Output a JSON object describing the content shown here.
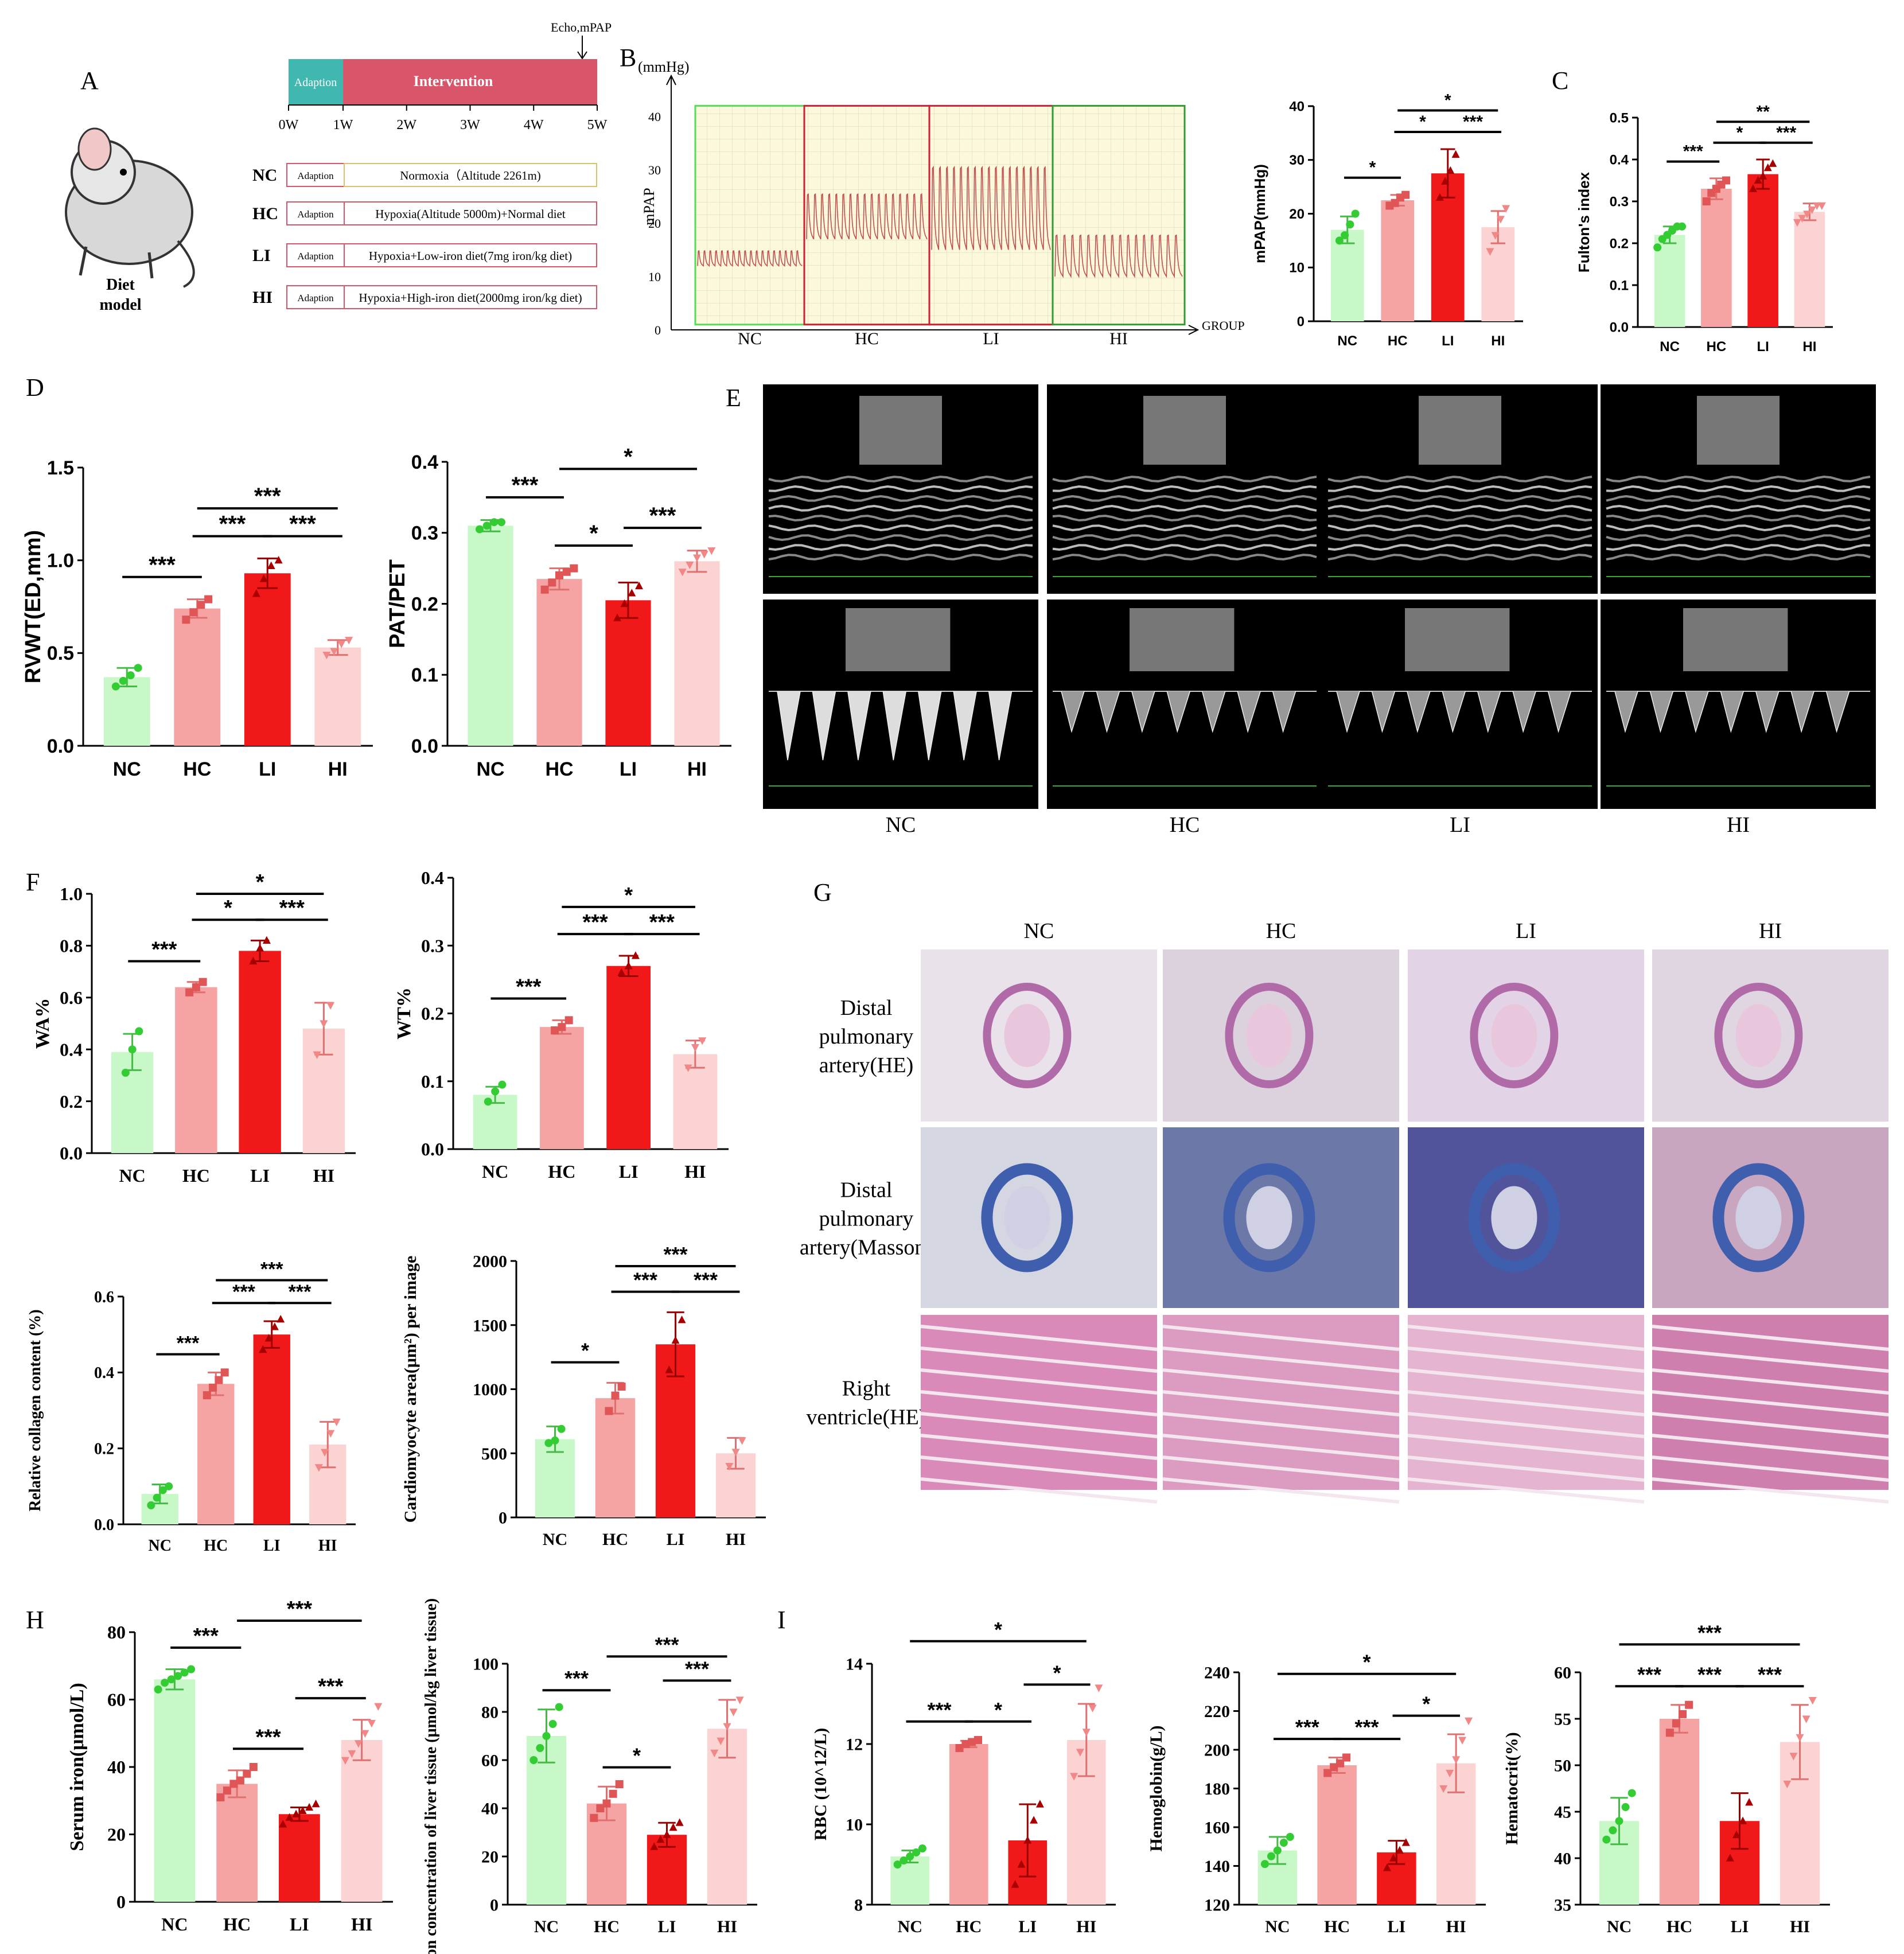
{
  "panels": {
    "A": "A",
    "B": "B",
    "C": "C",
    "D": "D",
    "E": "E",
    "F": "F",
    "G": "G",
    "H": "H",
    "I": "I"
  },
  "groups": [
    "NC",
    "HC",
    "LI",
    "HI"
  ],
  "colors": {
    "NC": "#c8f7c8",
    "HC": "#f5a3a3",
    "LI": "#f01818",
    "HI": "#fbd3d3",
    "NCm": "#33cc33",
    "HCm": "#e05555",
    "LIm": "#a80000",
    "HIm": "#f08888"
  },
  "design": {
    "echo_label": "Echo,mPAP",
    "adaption": "Adaption",
    "intervention": "Intervention",
    "weeks": [
      "0W",
      "1W",
      "2W",
      "3W",
      "4W",
      "5W"
    ],
    "diet_model": [
      "Diet",
      "model"
    ],
    "rows": [
      {
        "group": "NC",
        "adaption": "Adaption",
        "treatment": "Normoxia（Altitude 2261m)"
      },
      {
        "group": "HC",
        "adaption": "Adaption",
        "treatment": "Hypoxia(Altitude 5000m)+Normal diet"
      },
      {
        "group": "LI",
        "adaption": "Adaption",
        "treatment": "Hypoxia+Low-iron diet(7mg iron/kg diet)"
      },
      {
        "group": "HI",
        "adaption": "Adaption",
        "treatment": "Hypoxia+High-iron diet(2000mg iron/kg diet)"
      }
    ]
  },
  "traces": {
    "unit": "(mmHg)",
    "ylabel": "mPAP",
    "xlabel": "GROUP",
    "yticks": [
      "0",
      "10",
      "20",
      "30",
      "40"
    ],
    "groups": [
      "NC",
      "HC",
      "LI",
      "HI"
    ]
  },
  "histology": {
    "cols": [
      "NC",
      "HC",
      "LI",
      "HI"
    ],
    "rows": [
      [
        "Distal",
        "pulmonary",
        "artery(HE)"
      ],
      [
        "Distal",
        "pulmonary",
        "artery(Masson)"
      ],
      [
        "Right",
        "ventricle(HE)"
      ]
    ]
  },
  "echo": {
    "cols": [
      "NC",
      "HC",
      "LI",
      "HI"
    ]
  },
  "chart_data": [
    {
      "id": "mpap",
      "type": "bar",
      "categories": [
        "NC",
        "HC",
        "LI",
        "HI"
      ],
      "ylabel": "mPAP(mmHg)",
      "ylim": [
        0,
        40
      ],
      "yticks": [
        0,
        10,
        20,
        30,
        40
      ],
      "values": [
        17,
        22.5,
        27.5,
        17.5
      ],
      "errors": [
        2.5,
        1,
        4.5,
        3
      ],
      "points": [
        [
          15,
          16,
          18,
          20
        ],
        [
          21.5,
          22,
          23,
          23.5
        ],
        [
          23,
          26,
          28,
          31
        ],
        [
          13,
          16,
          19,
          21
        ]
      ],
      "sig": [
        {
          "a": 0,
          "b": 1,
          "l": "*"
        },
        {
          "a": 1,
          "b": 2,
          "l": "*"
        },
        {
          "a": 2,
          "b": 3,
          "l": "***"
        },
        {
          "a": 1,
          "b": 3,
          "l": "*"
        }
      ]
    },
    {
      "id": "fulton",
      "type": "bar",
      "categories": [
        "NC",
        "HC",
        "LI",
        "HI"
      ],
      "ylabel": "Fulton's index",
      "ylim": [
        0,
        0.5
      ],
      "yticks": [
        0.0,
        0.1,
        0.2,
        0.3,
        0.4,
        0.5
      ],
      "values": [
        0.22,
        0.33,
        0.365,
        0.275
      ],
      "errors": [
        0.02,
        0.025,
        0.035,
        0.02
      ],
      "points": [
        [
          0.19,
          0.21,
          0.22,
          0.23,
          0.24,
          0.24
        ],
        [
          0.3,
          0.32,
          0.33,
          0.34,
          0.35
        ],
        [
          0.33,
          0.35,
          0.36,
          0.38,
          0.39
        ],
        [
          0.25,
          0.26,
          0.27,
          0.28,
          0.29,
          0.29
        ]
      ],
      "sig": [
        {
          "a": 0,
          "b": 1,
          "l": "***"
        },
        {
          "a": 1,
          "b": 2,
          "l": "*"
        },
        {
          "a": 2,
          "b": 3,
          "l": "***"
        },
        {
          "a": 1,
          "b": 3,
          "l": "**"
        }
      ]
    },
    {
      "id": "rvwt",
      "type": "bar",
      "categories": [
        "NC",
        "HC",
        "LI",
        "HI"
      ],
      "ylabel": "RVWT(ED,mm)",
      "ylim": [
        0,
        1.5
      ],
      "yticks": [
        0.0,
        0.5,
        1.0,
        1.5
      ],
      "values": [
        0.37,
        0.74,
        0.93,
        0.53
      ],
      "errors": [
        0.05,
        0.05,
        0.08,
        0.04
      ],
      "points": [
        [
          0.32,
          0.35,
          0.38,
          0.42
        ],
        [
          0.68,
          0.72,
          0.76,
          0.79
        ],
        [
          0.82,
          0.9,
          0.97,
          1.0
        ],
        [
          0.49,
          0.51,
          0.55,
          0.57
        ]
      ],
      "sig": [
        {
          "a": 0,
          "b": 1,
          "l": "***"
        },
        {
          "a": 1,
          "b": 2,
          "l": "***"
        },
        {
          "a": 2,
          "b": 3,
          "l": "***"
        },
        {
          "a": 1,
          "b": 3,
          "l": "***"
        }
      ]
    },
    {
      "id": "patpet",
      "type": "bar",
      "categories": [
        "NC",
        "HC",
        "LI",
        "HI"
      ],
      "ylabel": "PAT/PET",
      "ylim": [
        0,
        0.4
      ],
      "yticks": [
        0.0,
        0.1,
        0.2,
        0.3,
        0.4
      ],
      "values": [
        0.31,
        0.235,
        0.205,
        0.26
      ],
      "errors": [
        0.008,
        0.015,
        0.025,
        0.015
      ],
      "points": [
        [
          0.305,
          0.31,
          0.315,
          0.315
        ],
        [
          0.22,
          0.23,
          0.24,
          0.245,
          0.25
        ],
        [
          0.18,
          0.2,
          0.215,
          0.225
        ],
        [
          0.245,
          0.255,
          0.265,
          0.27,
          0.275
        ]
      ],
      "sig": [
        {
          "a": 0,
          "b": 1,
          "l": "***"
        },
        {
          "a": 1,
          "b": 2,
          "l": "*"
        },
        {
          "a": 2,
          "b": 3,
          "l": "***"
        },
        {
          "a": 1,
          "b": 3,
          "l": "*"
        }
      ]
    },
    {
      "id": "wa",
      "type": "bar",
      "categories": [
        "NC",
        "HC",
        "LI",
        "HI"
      ],
      "ylabel": "WA%",
      "ylim": [
        0,
        1.0
      ],
      "yticks": [
        0.0,
        0.2,
        0.4,
        0.6,
        0.8,
        1.0
      ],
      "values": [
        0.39,
        0.64,
        0.78,
        0.48
      ],
      "errors": [
        0.07,
        0.02,
        0.04,
        0.1
      ],
      "points": [
        [
          0.31,
          0.4,
          0.47
        ],
        [
          0.62,
          0.64,
          0.66
        ],
        [
          0.74,
          0.79,
          0.82
        ],
        [
          0.38,
          0.5,
          0.57
        ]
      ],
      "sig": [
        {
          "a": 0,
          "b": 1,
          "l": "***"
        },
        {
          "a": 1,
          "b": 2,
          "l": "*"
        },
        {
          "a": 2,
          "b": 3,
          "l": "***"
        },
        {
          "a": 1,
          "b": 3,
          "l": "*"
        }
      ]
    },
    {
      "id": "wt",
      "type": "bar",
      "categories": [
        "NC",
        "HC",
        "LI",
        "HI"
      ],
      "ylabel": "WT%",
      "ylim": [
        0,
        0.4
      ],
      "yticks": [
        0.0,
        0.1,
        0.2,
        0.3,
        0.4
      ],
      "values": [
        0.08,
        0.18,
        0.27,
        0.14
      ],
      "errors": [
        0.012,
        0.01,
        0.015,
        0.02
      ],
      "points": [
        [
          0.07,
          0.085,
          0.095
        ],
        [
          0.175,
          0.18,
          0.19
        ],
        [
          0.26,
          0.27,
          0.285
        ],
        [
          0.12,
          0.15,
          0.16
        ]
      ],
      "sig": [
        {
          "a": 0,
          "b": 1,
          "l": "***"
        },
        {
          "a": 1,
          "b": 2,
          "l": "***"
        },
        {
          "a": 2,
          "b": 3,
          "l": "***"
        },
        {
          "a": 1,
          "b": 3,
          "l": "*"
        }
      ]
    },
    {
      "id": "collagen",
      "type": "bar",
      "categories": [
        "NC",
        "HC",
        "LI",
        "HI"
      ],
      "ylabel": "Relative collagen content (%)",
      "ylim": [
        0,
        0.6
      ],
      "yticks": [
        0.0,
        0.2,
        0.4,
        0.6
      ],
      "values": [
        0.08,
        0.37,
        0.5,
        0.21
      ],
      "errors": [
        0.025,
        0.03,
        0.035,
        0.06
      ],
      "points": [
        [
          0.05,
          0.07,
          0.09,
          0.1
        ],
        [
          0.34,
          0.36,
          0.38,
          0.4
        ],
        [
          0.46,
          0.49,
          0.52,
          0.54
        ],
        [
          0.15,
          0.19,
          0.24,
          0.27
        ]
      ],
      "sig": [
        {
          "a": 0,
          "b": 1,
          "l": "***"
        },
        {
          "a": 1,
          "b": 2,
          "l": "***"
        },
        {
          "a": 2,
          "b": 3,
          "l": "***"
        },
        {
          "a": 1,
          "b": 3,
          "l": "***"
        }
      ]
    },
    {
      "id": "cardio",
      "type": "bar",
      "categories": [
        "NC",
        "HC",
        "LI",
        "HI"
      ],
      "ylabel": "Cardiomyocyte area(μm²) per image",
      "ylim": [
        0,
        2000
      ],
      "yticks": [
        0,
        500,
        1000,
        1500,
        2000
      ],
      "values": [
        610,
        930,
        1350,
        500
      ],
      "errors": [
        100,
        120,
        250,
        120
      ],
      "points": [
        [
          580,
          600,
          690
        ],
        [
          830,
          950,
          1020
        ],
        [
          1150,
          1380,
          1540
        ],
        [
          400,
          510,
          600
        ]
      ],
      "sig": [
        {
          "a": 0,
          "b": 1,
          "l": "*"
        },
        {
          "a": 1,
          "b": 2,
          "l": "***"
        },
        {
          "a": 2,
          "b": 3,
          "l": "***"
        },
        {
          "a": 1,
          "b": 3,
          "l": "***"
        }
      ]
    },
    {
      "id": "serumiron",
      "type": "bar",
      "categories": [
        "NC",
        "HC",
        "LI",
        "HI"
      ],
      "ylabel": "Serum iron(μmol/L)",
      "ylim": [
        0,
        80
      ],
      "yticks": [
        0,
        20,
        40,
        60,
        80
      ],
      "values": [
        66,
        35,
        26,
        48
      ],
      "errors": [
        3,
        4,
        2,
        6
      ],
      "points": [
        [
          63,
          65,
          66,
          67,
          68,
          69
        ],
        [
          31,
          33,
          35,
          36,
          38,
          40
        ],
        [
          23,
          25,
          26,
          27,
          28,
          29
        ],
        [
          42,
          44,
          47,
          50,
          53,
          58
        ]
      ],
      "sig": [
        {
          "a": 0,
          "b": 1,
          "l": "***"
        },
        {
          "a": 1,
          "b": 2,
          "l": "***"
        },
        {
          "a": 2,
          "b": 3,
          "l": "***"
        },
        {
          "a": 1,
          "b": 3,
          "l": "***"
        }
      ]
    },
    {
      "id": "liveriron",
      "type": "bar",
      "categories": [
        "NC",
        "HC",
        "LI",
        "HI"
      ],
      "ylabel": "Iron concentration of liver tissue (μmol/kg liver tissue)",
      "ylim": [
        0,
        100
      ],
      "yticks": [
        0,
        20,
        40,
        60,
        80,
        100
      ],
      "values": [
        70,
        42,
        29,
        73
      ],
      "errors": [
        11,
        7,
        5,
        12
      ],
      "points": [
        [
          60,
          65,
          70,
          75,
          82
        ],
        [
          36,
          40,
          42,
          46,
          50
        ],
        [
          24,
          27,
          29,
          32,
          34
        ],
        [
          63,
          68,
          74,
          80,
          85
        ]
      ],
      "sig": [
        {
          "a": 0,
          "b": 1,
          "l": "***"
        },
        {
          "a": 1,
          "b": 2,
          "l": "*"
        },
        {
          "a": 2,
          "b": 3,
          "l": "***"
        },
        {
          "a": 1,
          "b": 3,
          "l": "***"
        }
      ]
    },
    {
      "id": "rbc",
      "type": "bar",
      "categories": [
        "NC",
        "HC",
        "LI",
        "HI"
      ],
      "ylabel": "RBC (10^12/L)",
      "ylim": [
        8,
        14
      ],
      "yticks": [
        8,
        10,
        12,
        14
      ],
      "values": [
        9.2,
        12.0,
        9.6,
        12.1
      ],
      "errors": [
        0.15,
        0.08,
        0.9,
        0.9
      ],
      "points": [
        [
          9.0,
          9.1,
          9.2,
          9.3,
          9.4
        ],
        [
          11.9,
          12.0,
          12.05,
          12.1
        ],
        [
          8.5,
          9.0,
          9.6,
          10.1,
          10.5
        ],
        [
          11.2,
          11.8,
          12.3,
          12.9,
          13.4
        ]
      ],
      "sig": [
        {
          "a": 0,
          "b": 1,
          "l": "***"
        },
        {
          "a": 1,
          "b": 2,
          "l": "*"
        },
        {
          "a": 2,
          "b": 3,
          "l": "*"
        },
        {
          "a": 0,
          "b": 3,
          "l": "*"
        }
      ]
    },
    {
      "id": "hgb",
      "type": "bar",
      "categories": [
        "NC",
        "HC",
        "LI",
        "HI"
      ],
      "ylabel": "Hemoglobin(g/L)",
      "ylim": [
        120,
        240
      ],
      "yticks": [
        120,
        140,
        160,
        180,
        200,
        220,
        240
      ],
      "values": [
        148,
        192,
        147,
        193
      ],
      "errors": [
        7,
        4,
        6,
        15
      ],
      "points": [
        [
          141,
          145,
          148,
          152,
          155
        ],
        [
          188,
          191,
          193,
          196
        ],
        [
          139,
          144,
          148,
          152
        ],
        [
          180,
          188,
          195,
          205,
          215
        ]
      ],
      "sig": [
        {
          "a": 0,
          "b": 1,
          "l": "***"
        },
        {
          "a": 1,
          "b": 2,
          "l": "***"
        },
        {
          "a": 2,
          "b": 3,
          "l": "*"
        },
        {
          "a": 0,
          "b": 3,
          "l": "*"
        }
      ]
    },
    {
      "id": "hct",
      "type": "bar",
      "categories": [
        "NC",
        "HC",
        "LI",
        "HI"
      ],
      "ylabel": "Hematocrit(%)",
      "ylim": [
        35,
        60
      ],
      "yticks": [
        35,
        40,
        45,
        50,
        55,
        60
      ],
      "values": [
        44,
        55,
        44,
        52.5
      ],
      "errors": [
        2.5,
        1.5,
        3,
        4
      ],
      "points": [
        [
          42,
          43,
          44,
          45.5,
          47
        ],
        [
          53.5,
          54.5,
          55.5,
          56.5
        ],
        [
          40,
          42.5,
          44,
          46
        ],
        [
          48,
          51,
          53,
          55,
          57
        ]
      ],
      "sig": [
        {
          "a": 0,
          "b": 1,
          "l": "***"
        },
        {
          "a": 1,
          "b": 2,
          "l": "***"
        },
        {
          "a": 2,
          "b": 3,
          "l": "***"
        },
        {
          "a": 0,
          "b": 3,
          "l": "***"
        }
      ]
    }
  ]
}
